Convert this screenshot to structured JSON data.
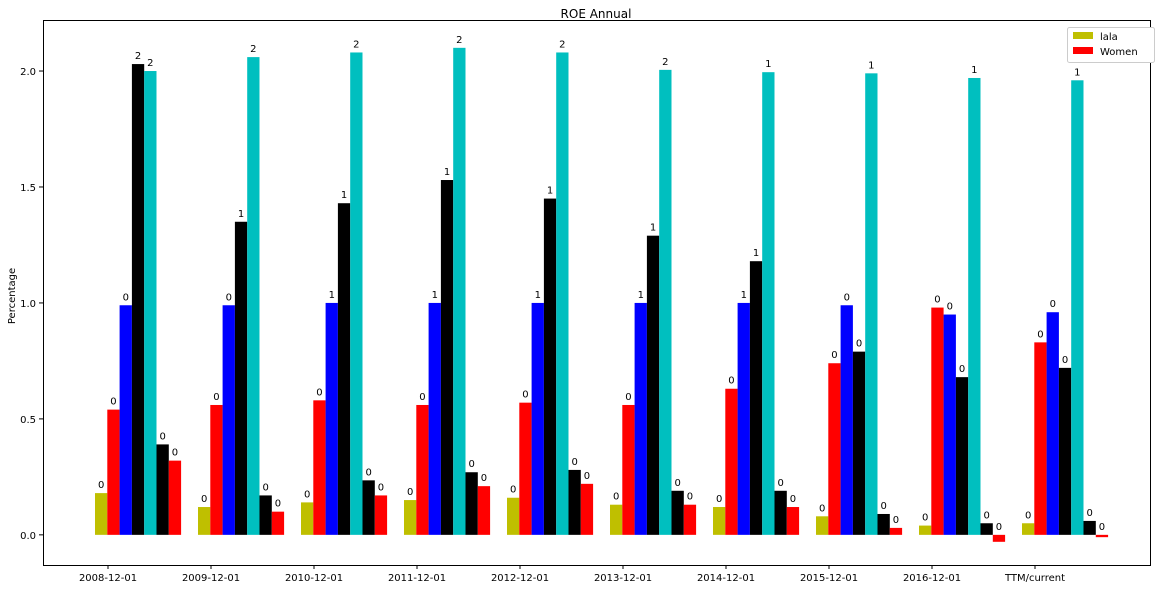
{
  "chart_data": {
    "type": "bar",
    "title": "ROE Annual",
    "xlabel": "",
    "ylabel": "Percentage",
    "ylim": [
      -0.13,
      2.22
    ],
    "yticks": [
      0.0,
      0.5,
      1.0,
      1.5,
      2.0
    ],
    "ytick_labels": [
      "0.0",
      "0.5",
      "1.0",
      "1.5",
      "2.0"
    ],
    "grid": false,
    "legend_position": "top-right",
    "legend": [
      {
        "label": "lala",
        "color": "#bfbf00"
      },
      {
        "label": "Women",
        "color": "#ff0000"
      }
    ],
    "categories": [
      "2008-12-01",
      "2009-12-01",
      "2010-12-01",
      "2011-12-01",
      "2012-12-01",
      "2013-12-01",
      "2014-12-01",
      "2015-12-01",
      "2016-12-01",
      "TTM/current"
    ],
    "series": [
      {
        "name": "lala",
        "color": "#bfbf00",
        "values": [
          0.18,
          0.12,
          0.14,
          0.15,
          0.16,
          0.13,
          0.12,
          0.08,
          0.04,
          0.05
        ]
      },
      {
        "name": "Women",
        "color": "#ff0000",
        "values": [
          0.54,
          0.56,
          0.58,
          0.56,
          0.57,
          0.56,
          0.63,
          0.74,
          0.98,
          0.83
        ]
      },
      {
        "name": "",
        "color": "#0000ff",
        "values": [
          0.99,
          0.99,
          1.0,
          1.0,
          1.0,
          1.0,
          1.0,
          0.99,
          0.95,
          0.96
        ]
      },
      {
        "name": "",
        "color": "#000000",
        "values": [
          2.03,
          1.35,
          1.43,
          1.53,
          1.45,
          1.29,
          1.18,
          0.79,
          0.68,
          0.72
        ]
      },
      {
        "name": "",
        "color": "#00bfbf",
        "values": [
          2.0,
          2.06,
          2.08,
          2.1,
          2.08,
          2.005,
          1.995,
          1.99,
          1.97,
          1.96
        ]
      },
      {
        "name": "",
        "color": "#000000",
        "values": [
          0.39,
          0.17,
          0.235,
          0.27,
          0.28,
          0.19,
          0.19,
          0.09,
          0.05,
          0.06
        ]
      },
      {
        "name": "",
        "color": "#ff0000",
        "values": [
          0.32,
          0.1,
          0.17,
          0.21,
          0.22,
          0.13,
          0.12,
          0.03,
          -0.03,
          -0.01
        ]
      }
    ]
  }
}
